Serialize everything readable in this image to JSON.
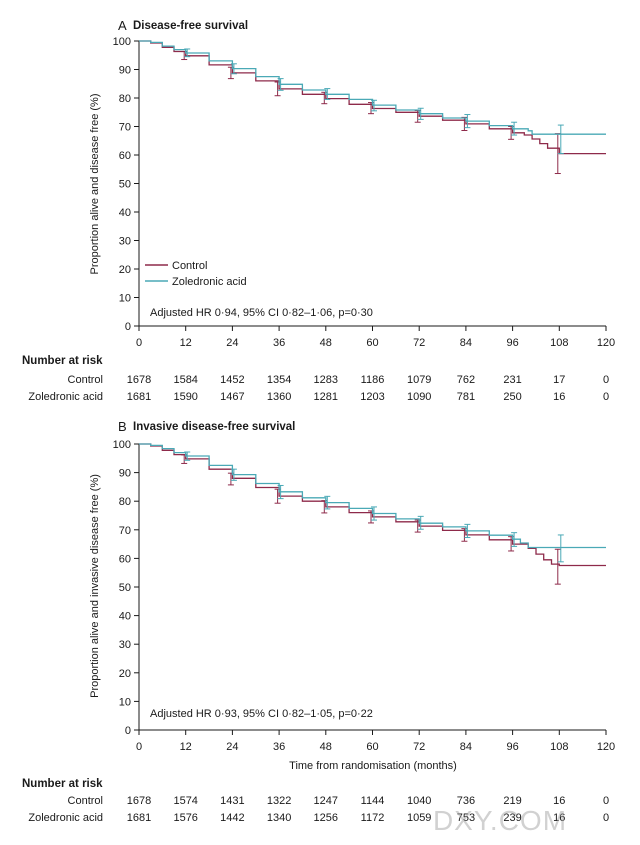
{
  "colors": {
    "control": "#8e2a4a",
    "zoledronic": "#4aa9b6",
    "axis": "#1a1a1a"
  },
  "watermark": "DXY.COM",
  "chart_data": [
    {
      "type": "line",
      "letter": "A",
      "title": "Disease-free survival",
      "ylabel": "Proportion alive and disease free (%)",
      "xlabel": "",
      "xlim": [
        0,
        120
      ],
      "ylim": [
        0,
        100
      ],
      "xticks": [
        0,
        12,
        24,
        36,
        48,
        60,
        72,
        84,
        96,
        108,
        120
      ],
      "yticks": [
        0,
        10,
        20,
        30,
        40,
        50,
        60,
        70,
        80,
        90,
        100
      ],
      "legend": [
        "Control",
        "Zoledronic acid"
      ],
      "annotation": "Adjusted HR 0·94, 95% CI 0·82–1·06, p=0·30",
      "series": [
        {
          "name": "Control",
          "x": [
            0,
            3,
            6,
            9,
            12,
            18,
            24,
            30,
            36,
            42,
            48,
            54,
            60,
            66,
            72,
            78,
            84,
            90,
            96,
            99,
            101,
            103,
            105,
            108,
            120
          ],
          "y": [
            100,
            99.3,
            97.8,
            96.3,
            94.8,
            91.6,
            88.8,
            86,
            83.2,
            81.3,
            79.8,
            77.8,
            76.3,
            75,
            73.6,
            72.2,
            70.9,
            69.2,
            67.8,
            67,
            65.6,
            64,
            62.4,
            60.5,
            60.5
          ],
          "ci_x": [
            12,
            24,
            36,
            48,
            60,
            72,
            84,
            96,
            108
          ],
          "ci_low": [
            93.5,
            86.8,
            80.8,
            78,
            74.5,
            71.5,
            68.6,
            65.5,
            53.5
          ],
          "ci_high": [
            96.3,
            90.8,
            85.6,
            82,
            78.4,
            75.6,
            73.2,
            70,
            67.5
          ]
        },
        {
          "name": "Zoledronic acid",
          "x": [
            0,
            3,
            6,
            9,
            12,
            18,
            24,
            30,
            36,
            42,
            48,
            54,
            60,
            66,
            72,
            78,
            84,
            90,
            96,
            100,
            101,
            120
          ],
          "y": [
            100,
            99.5,
            98.2,
            97,
            95.8,
            93,
            90.3,
            87.5,
            84.8,
            82.8,
            81.3,
            79.5,
            77.5,
            75.8,
            74.5,
            73,
            71.9,
            70.3,
            69.2,
            68.5,
            67.3,
            67.3
          ],
          "ci_x": [
            12,
            24,
            36,
            48,
            60,
            72,
            84,
            96,
            108
          ],
          "ci_low": [
            94.5,
            88.5,
            82.7,
            79.5,
            75.5,
            72.5,
            69.6,
            67,
            60.5
          ],
          "ci_high": [
            97.2,
            92,
            86.8,
            83.3,
            79.2,
            76.4,
            74.2,
            71.5,
            70.5
          ]
        }
      ],
      "risk": {
        "header": "Number at risk",
        "rows": [
          {
            "label": "Control",
            "values": [
              "1678",
              "1584",
              "1452",
              "1354",
              "1283",
              "1186",
              "1079",
              "762",
              "231",
              "17",
              "0"
            ]
          },
          {
            "label": "Zoledronic acid",
            "values": [
              "1681",
              "1590",
              "1467",
              "1360",
              "1281",
              "1203",
              "1090",
              "781",
              "250",
              "16",
              "0"
            ]
          }
        ]
      }
    },
    {
      "type": "line",
      "letter": "B",
      "title": "Invasive disease-free survival",
      "ylabel": "Proportion alive and invasive disease free (%)",
      "xlabel": "Time from randomisation (months)",
      "xlim": [
        0,
        120
      ],
      "ylim": [
        0,
        100
      ],
      "xticks": [
        0,
        12,
        24,
        36,
        48,
        60,
        72,
        84,
        96,
        108,
        120
      ],
      "yticks": [
        0,
        10,
        20,
        30,
        40,
        50,
        60,
        70,
        80,
        90,
        100
      ],
      "legend": [],
      "annotation": "Adjusted HR 0·93, 95% CI 0·82–1·05, p=0·22",
      "series": [
        {
          "name": "Control",
          "x": [
            0,
            3,
            6,
            9,
            12,
            18,
            24,
            30,
            36,
            42,
            48,
            54,
            60,
            66,
            72,
            78,
            84,
            90,
            96,
            100,
            102,
            104,
            106,
            108,
            120
          ],
          "y": [
            100,
            99.3,
            97.8,
            96.3,
            94.8,
            91.2,
            88,
            84.8,
            81.8,
            80,
            78,
            76,
            74.5,
            72.8,
            71.3,
            69.8,
            68.2,
            66.5,
            65,
            63.5,
            61.5,
            59.5,
            58,
            57.5,
            57.5
          ],
          "ci_x": [
            12,
            24,
            36,
            48,
            60,
            72,
            84,
            96,
            108
          ],
          "ci_low": [
            93.2,
            85.7,
            79.3,
            75.9,
            72.4,
            69.2,
            66,
            62.6,
            51
          ],
          "ci_high": [
            96.2,
            89.8,
            84.2,
            80.2,
            76.6,
            73.4,
            70.4,
            67.6,
            63.2
          ]
        },
        {
          "name": "Zoledronic acid",
          "x": [
            0,
            3,
            6,
            9,
            12,
            18,
            24,
            30,
            36,
            42,
            48,
            54,
            60,
            66,
            72,
            78,
            84,
            90,
            96,
            98,
            100,
            120
          ],
          "y": [
            100,
            99.5,
            98.4,
            97,
            95.8,
            92.5,
            89.3,
            86.2,
            83.3,
            81.2,
            79.5,
            77.5,
            75.7,
            73.8,
            72.3,
            71,
            69.6,
            68.1,
            66.7,
            65.4,
            63.8,
            63.8
          ],
          "ci_x": [
            12,
            24,
            36,
            48,
            60,
            72,
            84,
            96,
            108
          ],
          "ci_low": [
            94.3,
            87.3,
            80.9,
            77.3,
            73.4,
            70.2,
            67.3,
            64.2,
            58.8
          ],
          "ci_high": [
            97.2,
            91.2,
            85.5,
            81.7,
            78,
            74.7,
            71.9,
            69,
            68.2
          ]
        }
      ],
      "risk": {
        "header": "Number at risk",
        "rows": [
          {
            "label": "Control",
            "values": [
              "1678",
              "1574",
              "1431",
              "1322",
              "1247",
              "1144",
              "1040",
              "736",
              "219",
              "16",
              "0"
            ]
          },
          {
            "label": "Zoledronic acid",
            "values": [
              "1681",
              "1576",
              "1442",
              "1340",
              "1256",
              "1172",
              "1059",
              "753",
              "239",
              "16",
              "0"
            ]
          }
        ]
      }
    }
  ]
}
